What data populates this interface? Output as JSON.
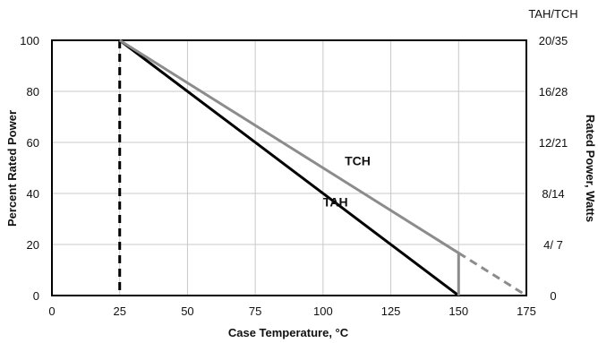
{
  "chart_data": {
    "type": "line",
    "xlabel": "Case Temperature, °C",
    "ylabel": "Percent Rated Power",
    "y2label": "Rated Power, Watts",
    "y2header": "TAH/TCH",
    "xlim": [
      0,
      175
    ],
    "ylim": [
      0,
      100
    ],
    "x_ticks": [
      0,
      25,
      50,
      75,
      100,
      125,
      150,
      175
    ],
    "x_tick_labels": [
      "0",
      "25",
      "50",
      "75",
      "100",
      "125",
      "150",
      "175"
    ],
    "y_ticks": [
      0,
      20,
      40,
      60,
      80,
      100
    ],
    "y_tick_labels": [
      "0",
      "20",
      "40",
      "60",
      "80",
      "100"
    ],
    "y2_ticks": [
      0,
      20,
      40,
      60,
      80,
      100
    ],
    "y2_tick_labels": [
      "0",
      "4/ 7",
      "8/14",
      "12/21",
      "16/28",
      "20/35"
    ],
    "grid": true,
    "series": [
      {
        "name": "TAH",
        "color": "#000000",
        "points": [
          [
            25,
            100
          ],
          [
            150,
            0
          ]
        ]
      },
      {
        "name": "TCH",
        "color": "#8c8c8c",
        "points": [
          [
            25,
            100
          ],
          [
            150,
            16.67
          ],
          [
            150,
            0
          ]
        ],
        "dashed_extension": [
          [
            150,
            16.67
          ],
          [
            175,
            0
          ]
        ]
      }
    ],
    "reference_line": {
      "x": 25,
      "style": "dashed",
      "color": "#000000"
    },
    "series_label_positions": {
      "TAH": [
        100,
        35
      ],
      "TCH": [
        108,
        51
      ]
    }
  }
}
